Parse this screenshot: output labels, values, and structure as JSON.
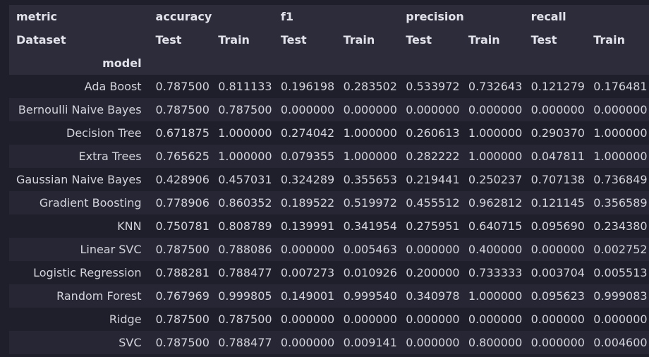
{
  "header": {
    "row1_label": "metric",
    "metrics": [
      "accuracy",
      "f1",
      "precision",
      "recall"
    ],
    "row2_label": "Dataset",
    "datasets": [
      "Test",
      "Train",
      "Test",
      "Train",
      "Test",
      "Train",
      "Test",
      "Train"
    ],
    "row3_label": "model"
  },
  "rows": [
    {
      "model": "Ada Boost",
      "values": [
        "0.787500",
        "0.811133",
        "0.196198",
        "0.283502",
        "0.533972",
        "0.732643",
        "0.121279",
        "0.176481"
      ]
    },
    {
      "model": "Bernoulli Naive Bayes",
      "values": [
        "0.787500",
        "0.787500",
        "0.000000",
        "0.000000",
        "0.000000",
        "0.000000",
        "0.000000",
        "0.000000"
      ]
    },
    {
      "model": "Decision Tree",
      "values": [
        "0.671875",
        "1.000000",
        "0.274042",
        "1.000000",
        "0.260613",
        "1.000000",
        "0.290370",
        "1.000000"
      ]
    },
    {
      "model": "Extra Trees",
      "values": [
        "0.765625",
        "1.000000",
        "0.079355",
        "1.000000",
        "0.282222",
        "1.000000",
        "0.047811",
        "1.000000"
      ]
    },
    {
      "model": "Gaussian Naive Bayes",
      "values": [
        "0.428906",
        "0.457031",
        "0.324289",
        "0.355653",
        "0.219441",
        "0.250237",
        "0.707138",
        "0.736849"
      ]
    },
    {
      "model": "Gradient Boosting",
      "values": [
        "0.778906",
        "0.860352",
        "0.189522",
        "0.519972",
        "0.455512",
        "0.962812",
        "0.121145",
        "0.356589"
      ]
    },
    {
      "model": "KNN",
      "values": [
        "0.750781",
        "0.808789",
        "0.139991",
        "0.341954",
        "0.275951",
        "0.640715",
        "0.095690",
        "0.234380"
      ]
    },
    {
      "model": "Linear SVC",
      "values": [
        "0.787500",
        "0.788086",
        "0.000000",
        "0.005463",
        "0.000000",
        "0.400000",
        "0.000000",
        "0.002752"
      ]
    },
    {
      "model": "Logistic Regression",
      "values": [
        "0.788281",
        "0.788477",
        "0.007273",
        "0.010926",
        "0.200000",
        "0.733333",
        "0.003704",
        "0.005513"
      ]
    },
    {
      "model": "Random Forest",
      "values": [
        "0.767969",
        "0.999805",
        "0.149001",
        "0.999540",
        "0.340978",
        "1.000000",
        "0.095623",
        "0.999083"
      ]
    },
    {
      "model": "Ridge",
      "values": [
        "0.787500",
        "0.787500",
        "0.000000",
        "0.000000",
        "0.000000",
        "0.000000",
        "0.000000",
        "0.000000"
      ]
    },
    {
      "model": "SVC",
      "values": [
        "0.787500",
        "0.788477",
        "0.000000",
        "0.009141",
        "0.000000",
        "0.800000",
        "0.000000",
        "0.004600"
      ]
    }
  ]
}
